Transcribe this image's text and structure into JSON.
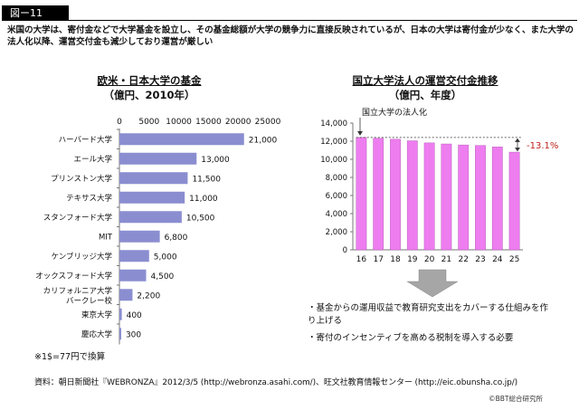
{
  "figure_tag": "図ー11",
  "lead_text": "米国の大学は、寄付金などで大学基金を設立し、その基金総額が大学の競争力に直接反映されているが、日本の大学は寄付金が少なく、また大学の法人化以降、運営交付金も減少しており運営が厳しい",
  "left_title": "欧米・日本大学の基金",
  "left_subtitle": "（億円、2010年）",
  "right_title": "国立大学法人の運営交付金推移",
  "right_subtitle": "（億円、年度）",
  "note": "※1$=77円で換算",
  "source": "資料：朝日新聞社『WEBRONZA』2012/3/5 (http://webronza.asahi.com/)、旺文社教育情報センター (http://eic.obunsha.co.jp/)",
  "copyright": "©BBT総合研究所",
  "bullets": [
    "・基金からの運用収益で教育研究支出をカバーする仕組みを作り上げる",
    "・寄付のインセンティブを高める税制を導入する必要"
  ],
  "colors": {
    "bar_left": "#8a8ed0",
    "bar_right": "#ee7df0",
    "accent_red": "#c0201c",
    "arrow_gray": "#a6a6a6"
  },
  "chart_data": [
    {
      "type": "bar",
      "orientation": "horizontal",
      "title": "欧米・日本大学の基金",
      "subtitle": "（億円、2010年）",
      "categories": [
        "ハーバード大学",
        "エール大学",
        "プリンストン大学",
        "テキサス大学",
        "スタンフォード大学",
        "MIT",
        "ケンブリッジ大学",
        "オックスフォード大学",
        "カリフォルニア大学\nバークレー校",
        "東京大学",
        "慶応大学"
      ],
      "values": [
        21000,
        13000,
        11500,
        11000,
        10500,
        6800,
        5000,
        4500,
        2200,
        400,
        300
      ],
      "value_labels": [
        "21,000",
        "13,000",
        "11,500",
        "11,000",
        "10,500",
        "6,800",
        "5,000",
        "4,500",
        "2,200",
        "400",
        "300"
      ],
      "xlim": [
        0,
        25000
      ],
      "xticks": [
        0,
        5000,
        10000,
        15000,
        20000,
        25000
      ]
    },
    {
      "type": "bar",
      "title": "国立大学法人の運営交付金推移",
      "subtitle": "（億円、年度）",
      "categories": [
        "16",
        "17",
        "18",
        "19",
        "20",
        "21",
        "22",
        "23",
        "24",
        "25"
      ],
      "values": [
        12415,
        12317,
        12214,
        12043,
        11813,
        11695,
        11585,
        11528,
        11366,
        10792
      ],
      "ylim": [
        0,
        14000
      ],
      "yticks": [
        0,
        2000,
        4000,
        6000,
        8000,
        10000,
        12000,
        14000
      ],
      "ytick_labels": [
        "0",
        "2,000",
        "4,000",
        "6,000",
        "8,000",
        "10,000",
        "12,000",
        "14,000"
      ],
      "annotation_label": "国立大学の法人化",
      "change_label": "-13.1%"
    }
  ]
}
